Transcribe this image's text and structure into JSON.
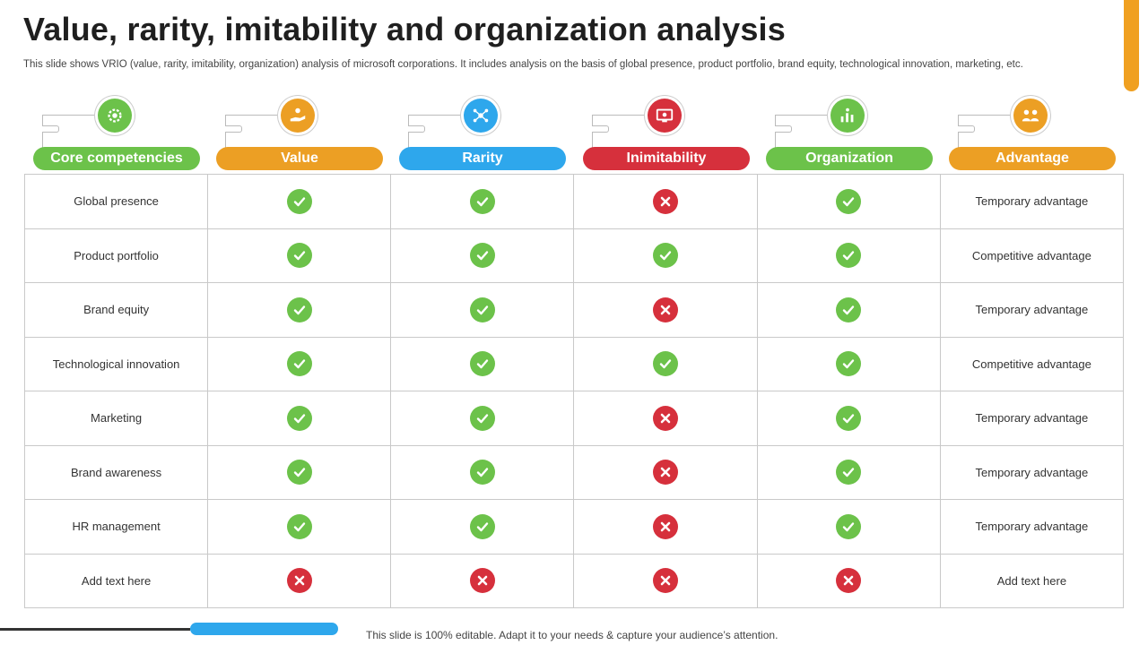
{
  "title": "Value, rarity, imitability and organization analysis",
  "subtitle": "This slide shows VRIO (value, rarity,  imitability, organization) analysis of microsoft corporations. It includes analysis on the basis of global presence, product portfolio, brand equity, technological innovation, marketing, etc.",
  "colors": {
    "green": "#6cc24a",
    "orange": "#ec9f24",
    "blue": "#2ea7ec",
    "red": "#d6303c",
    "accent": "#f0a020"
  },
  "headers": [
    {
      "label": "Core competencies",
      "color": "#6cc24a",
      "icon": "gear-icon"
    },
    {
      "label": "Value",
      "color": "#ec9f24",
      "icon": "hand-coin-icon"
    },
    {
      "label": "Rarity",
      "color": "#2ea7ec",
      "icon": "network-icon"
    },
    {
      "label": "Inimitability",
      "color": "#d6303c",
      "icon": "monitor-icon"
    },
    {
      "label": "Organization",
      "color": "#6cc24a",
      "icon": "chart-people-icon"
    },
    {
      "label": "Advantage",
      "color": "#ec9f24",
      "icon": "team-icon"
    }
  ],
  "rows": [
    {
      "competency": "Global presence",
      "value": "yes",
      "rarity": "yes",
      "inimitability": "no",
      "organization": "yes",
      "advantage": "Temporary  advantage"
    },
    {
      "competency": "Product portfolio",
      "value": "yes",
      "rarity": "yes",
      "inimitability": "yes",
      "organization": "yes",
      "advantage": "Competitive  advantage"
    },
    {
      "competency": "Brand equity",
      "value": "yes",
      "rarity": "yes",
      "inimitability": "no",
      "organization": "yes",
      "advantage": "Temporary  advantage"
    },
    {
      "competency": "Technological  innovation",
      "value": "yes",
      "rarity": "yes",
      "inimitability": "yes",
      "organization": "yes",
      "advantage": "Competitive  advantage"
    },
    {
      "competency": "Marketing",
      "value": "yes",
      "rarity": "yes",
      "inimitability": "no",
      "organization": "yes",
      "advantage": "Temporary  advantage"
    },
    {
      "competency": "Brand awareness",
      "value": "yes",
      "rarity": "yes",
      "inimitability": "no",
      "organization": "yes",
      "advantage": "Temporary  advantage"
    },
    {
      "competency": "HR management",
      "value": "yes",
      "rarity": "yes",
      "inimitability": "no",
      "organization": "yes",
      "advantage": "Temporary  advantage"
    },
    {
      "competency": "Add text here",
      "value": "no",
      "rarity": "no",
      "inimitability": "no",
      "organization": "no",
      "advantage": "Add text here"
    }
  ],
  "footer": "This slide is 100% editable. Adapt it to your needs & capture your audience’s attention."
}
